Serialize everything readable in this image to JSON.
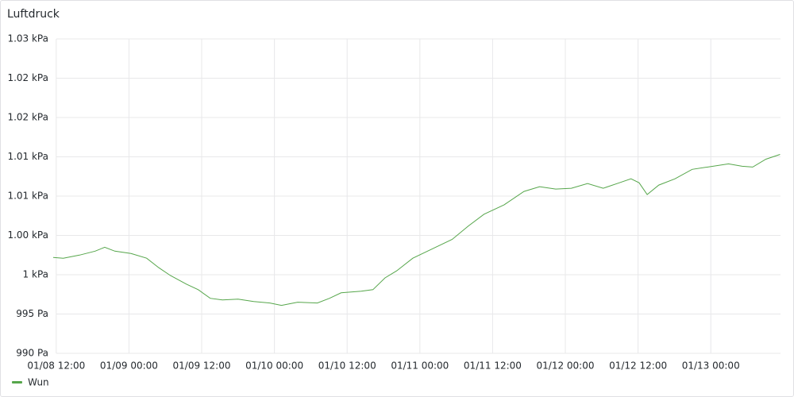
{
  "chart_data": {
    "type": "line",
    "title": "Luftdruck",
    "x": [
      "01/08 11:30",
      "01/08 13:10",
      "01/08 15:50",
      "01/08 18:25",
      "01/08 20:00",
      "01/08 21:40",
      "01/09 00:20",
      "01/09 02:55",
      "01/09 04:55",
      "01/09 06:50",
      "01/09 09:30",
      "01/09 11:25",
      "01/09 13:25",
      "01/09 15:25",
      "01/09 18:00",
      "01/09 20:35",
      "01/09 23:15",
      "01/10 01:10",
      "01/10 03:50",
      "01/10 07:05",
      "01/10 09:05",
      "01/10 11:00",
      "01/10 14:20",
      "01/10 16:15",
      "01/10 18:15",
      "01/10 20:10",
      "01/10 22:50",
      "01/11 02:05",
      "01/11 05:20",
      "01/11 08:00",
      "01/11 10:35",
      "01/11 13:55",
      "01/11 17:10",
      "01/11 19:45",
      "01/11 22:25",
      "01/12 01:00",
      "01/12 03:40",
      "01/12 06:15",
      "01/12 08:55",
      "01/12 10:50",
      "01/12 12:10",
      "01/12 13:30",
      "01/12 15:25",
      "01/12 18:05",
      "01/12 20:55",
      "01/13 02:55",
      "01/13 05:10",
      "01/13 06:55",
      "01/13 09:05",
      "01/13 11:25"
    ],
    "series": [
      {
        "name": "Wun",
        "color": "#56a64b",
        "values": [
          1002.2,
          1002.1,
          1002.5,
          1003.0,
          1003.5,
          1003.0,
          1002.7,
          1002.1,
          1000.9,
          999.9,
          998.8,
          998.1,
          997.0,
          996.8,
          996.9,
          996.6,
          996.4,
          996.1,
          996.5,
          996.4,
          997.0,
          997.7,
          997.9,
          998.1,
          999.6,
          1000.5,
          1002.1,
          1003.3,
          1004.5,
          1006.2,
          1007.7,
          1008.9,
          1010.6,
          1011.2,
          1010.9,
          1011.0,
          1011.6,
          1011.0,
          1011.7,
          1012.2,
          1011.7,
          1010.2,
          1011.4,
          1012.2,
          1013.4,
          1014.1,
          1013.8,
          1013.7,
          1014.7,
          1015.3
        ]
      }
    ],
    "xlim": [
      "01/08 11:30",
      "01/13 11:30"
    ],
    "xticks": [
      "01/08 12:00",
      "01/09 00:00",
      "01/09 12:00",
      "01/10 00:00",
      "01/10 12:00",
      "01/11 00:00",
      "01/11 12:00",
      "01/12 00:00",
      "01/12 12:00",
      "01/13 00:00"
    ],
    "ylim": [
      990,
      1030
    ],
    "yticks": [
      {
        "value": 990,
        "label": "990 Pa"
      },
      {
        "value": 995,
        "label": "995 Pa"
      },
      {
        "value": 1000,
        "label": "1 kPa"
      },
      {
        "value": 1005,
        "label": "1.00 kPa"
      },
      {
        "value": 1010,
        "label": "1.01 kPa"
      },
      {
        "value": 1015,
        "label": "1.01 kPa"
      },
      {
        "value": 1020,
        "label": "1.02 kPa"
      },
      {
        "value": 1025,
        "label": "1.02 kPa"
      },
      {
        "value": 1030,
        "label": "1.03 kPa"
      }
    ],
    "grid": true
  }
}
